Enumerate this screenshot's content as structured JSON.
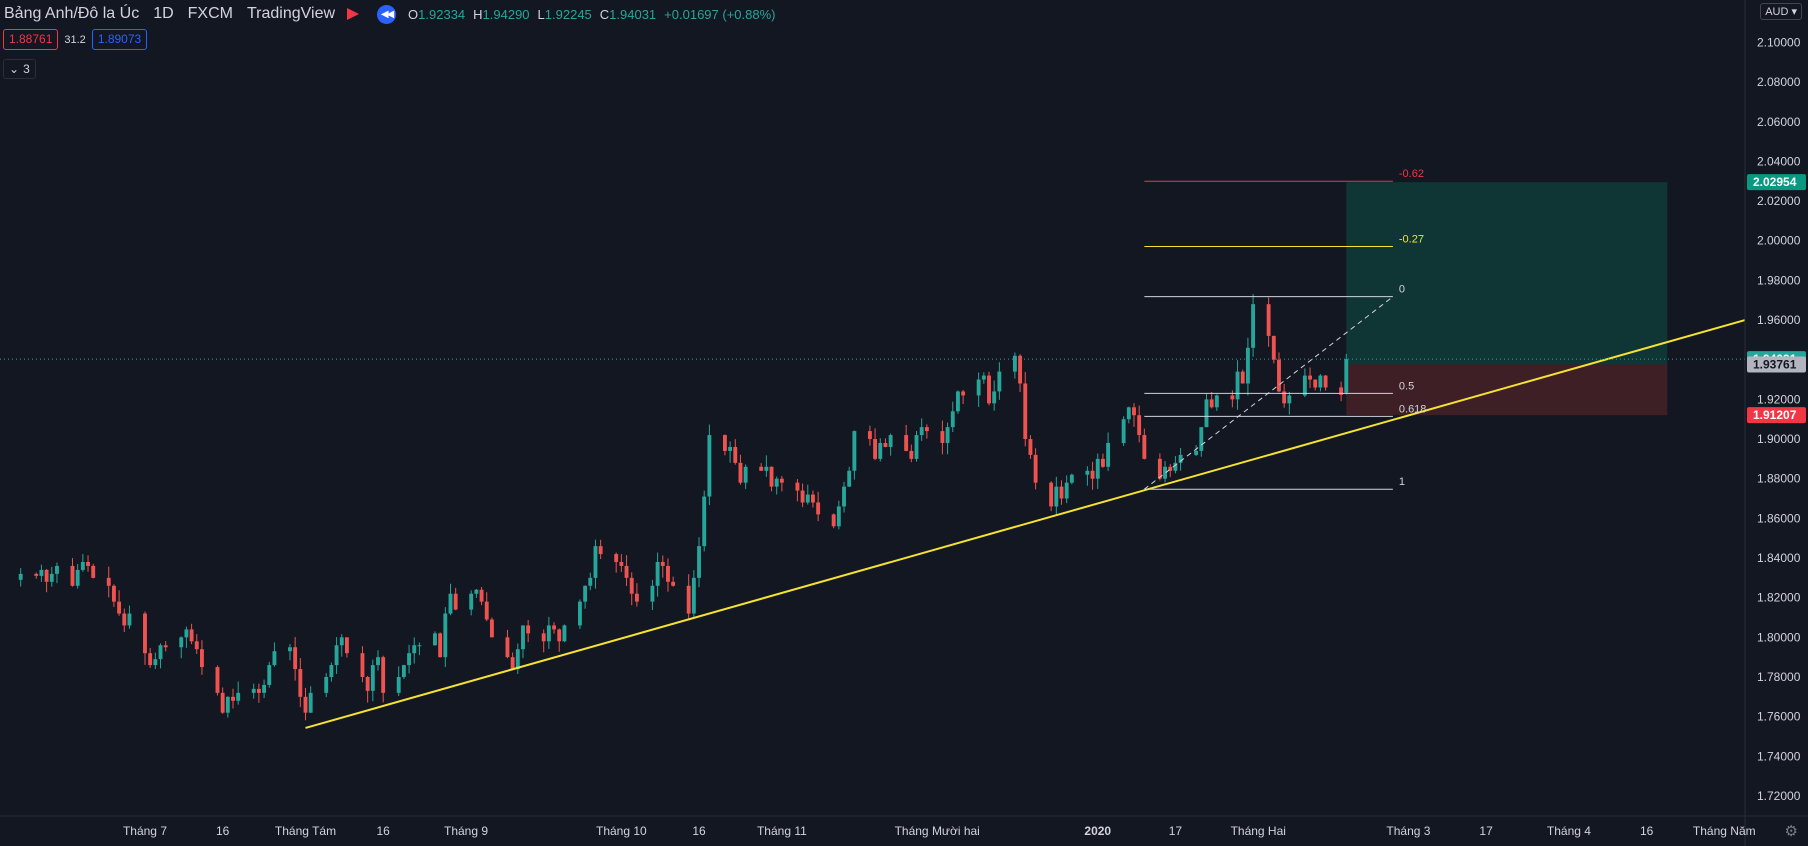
{
  "legend": {
    "symbol": "Bảng Anh/Đô la Úc",
    "interval": "1D",
    "source": "FXCM",
    "platform": "TradingView",
    "ohlc": [
      {
        "k": "O",
        "v": "1.92334"
      },
      {
        "k": "H",
        "v": "1.94290"
      },
      {
        "k": "L",
        "v": "1.92245"
      },
      {
        "k": "C",
        "v": "1.94031"
      },
      {
        "k": "",
        "v": "+0.01697 (+0.88%)"
      }
    ],
    "sell": "1.88761",
    "spread": "31.2",
    "buy": "1.89073",
    "indicator_count": "3",
    "currency": "AUD"
  },
  "colors": {
    "background": "#131722",
    "up": "#26a69a",
    "down": "#ef5350",
    "trendline": "#f5e232",
    "profit_zone": "#0f3534",
    "loss_zone": "#3e1f25"
  },
  "chart_data": {
    "type": "candlestick",
    "y_ticks": [
      1.72,
      1.74,
      1.76,
      1.78,
      1.8,
      1.82,
      1.84,
      1.86,
      1.88,
      1.9,
      1.92,
      1.94,
      1.96,
      1.98,
      2.0,
      2.02,
      2.04,
      2.06,
      2.08,
      2.1
    ],
    "y_tick_labels": [
      "1.72000",
      "1.74000",
      "1.76000",
      "1.78000",
      "1.80000",
      "1.82000",
      "1.84000",
      "1.86000",
      "1.88000",
      "1.90000",
      "1.92000",
      "1.94000",
      "1.96000",
      "1.98000",
      "2.00000",
      "2.02000",
      "2.04000",
      "2.06000",
      "2.08000",
      "2.10000"
    ],
    "ylim": [
      1.7099,
      2.1214
    ],
    "x_range": [
      "2019-06-03",
      "2020-05-05"
    ],
    "x_ticks": [
      {
        "date": "2019-07-01",
        "label": "Tháng 7",
        "bold": false
      },
      {
        "date": "2019-07-16",
        "label": "16",
        "bold": false
      },
      {
        "date": "2019-08-01",
        "label": "Tháng Tám",
        "bold": false
      },
      {
        "date": "2019-08-16",
        "label": "16",
        "bold": false
      },
      {
        "date": "2019-09-01",
        "label": "Tháng 9",
        "bold": false
      },
      {
        "date": "2019-10-01",
        "label": "Tháng 10",
        "bold": false
      },
      {
        "date": "2019-10-16",
        "label": "16",
        "bold": false
      },
      {
        "date": "2019-11-01",
        "label": "Tháng 11",
        "bold": false
      },
      {
        "date": "2019-12-01",
        "label": "Tháng Mười hai",
        "bold": false
      },
      {
        "date": "2020-01-01",
        "label": "2020",
        "bold": true
      },
      {
        "date": "2020-01-16",
        "label": "17",
        "bold": false
      },
      {
        "date": "2020-02-01",
        "label": "Tháng Hai",
        "bold": false
      },
      {
        "date": "2020-03-01",
        "label": "Tháng 3",
        "bold": false
      },
      {
        "date": "2020-03-16",
        "label": "17",
        "bold": false
      },
      {
        "date": "2020-04-01",
        "label": "Tháng 4",
        "bold": false
      },
      {
        "date": "2020-04-16",
        "label": "16",
        "bold": false
      },
      {
        "date": "2020-05-01",
        "label": "Tháng Năm",
        "bold": false
      }
    ],
    "candle_closes": [
      1.832,
      1.831,
      1.834,
      1.828,
      1.832,
      1.836,
      1.826,
      1.834,
      1.838,
      1.836,
      1.83,
      1.826,
      1.818,
      1.812,
      1.806,
      1.812,
      1.792,
      1.786,
      1.789,
      1.796,
      1.795,
      1.8,
      1.804,
      1.798,
      1.794,
      1.785,
      1.772,
      1.762,
      1.77,
      1.768,
      1.772,
      1.774,
      1.772,
      1.776,
      1.786,
      1.793,
      1.795,
      1.784,
      1.77,
      1.762,
      1.772,
      1.78,
      1.786,
      1.796,
      1.8,
      1.792,
      1.78,
      1.773,
      1.786,
      1.79,
      1.772,
      1.78,
      1.786,
      1.792,
      1.796,
      1.796,
      1.802,
      1.79,
      1.812,
      1.822,
      1.814,
      1.822,
      1.824,
      1.818,
      1.809,
      1.8,
      1.79,
      1.784,
      1.794,
      1.806,
      1.802,
      1.798,
      1.806,
      1.804,
      1.798,
      1.806,
      1.818,
      1.826,
      1.83,
      1.846,
      1.842,
      1.838,
      1.836,
      1.83,
      1.822,
      1.818,
      1.826,
      1.838,
      1.836,
      1.828,
      1.826,
      1.812,
      1.83,
      1.846,
      1.871,
      1.902,
      1.894,
      1.896,
      1.888,
      1.878,
      1.886,
      1.884,
      1.886,
      1.876,
      1.88,
      1.878,
      1.874,
      1.868,
      1.872,
      1.868,
      1.862,
      1.856,
      1.866,
      1.876,
      1.884,
      1.904,
      1.9,
      1.89,
      1.898,
      1.896,
      1.902,
      1.894,
      1.89,
      1.902,
      1.906,
      1.904,
      1.898,
      1.906,
      1.914,
      1.924,
      1.922,
      1.93,
      1.932,
      1.918,
      1.924,
      1.934,
      1.942,
      1.928,
      1.9,
      1.892,
      1.878,
      1.866,
      1.876,
      1.87,
      1.878,
      1.882,
      1.884,
      1.88,
      1.89,
      1.886,
      1.898,
      1.91,
      1.916,
      1.912,
      1.902,
      1.89,
      1.88,
      1.886,
      1.884,
      1.888,
      1.892,
      1.894,
      1.906,
      1.92,
      1.916,
      1.922,
      1.92,
      1.934,
      1.928,
      1.946,
      1.968,
      1.952,
      1.94,
      1.924,
      1.918,
      1.922,
      1.932,
      1.93,
      1.926,
      1.932,
      1.926,
      1.9223,
      1.9403
    ],
    "last_candle": {
      "date": "2020-02-18",
      "open": 1.92334,
      "high": 1.9429,
      "low": 1.92245,
      "close": 1.94031
    },
    "trendline": {
      "from": {
        "date": "2019-08-01",
        "price": 1.7543
      },
      "to": {
        "date": "2020-05-05",
        "price": 1.96
      }
    },
    "fib_retracement": {
      "start": "2020-01-10",
      "end": "2020-02-27",
      "levels": [
        {
          "label": "-0.62",
          "price": 2.03,
          "color": "#f23645"
        },
        {
          "label": "-0.27",
          "price": 1.9971,
          "color": "#f5e232"
        },
        {
          "label": "0",
          "price": 1.9718,
          "color": "#d1d4dc"
        },
        {
          "label": "0.5",
          "price": 1.923,
          "color": "#d1d4dc"
        },
        {
          "label": "0.618",
          "price": 1.9114,
          "color": "#d1d4dc"
        },
        {
          "label": "1",
          "price": 1.8747,
          "color": "#d1d4dc"
        }
      ],
      "diagonal": {
        "from": {
          "date": "2020-01-10",
          "price": 1.8747
        },
        "to": {
          "date": "2020-02-27",
          "price": 1.9718
        }
      }
    },
    "long_position": {
      "start": "2020-02-18",
      "end": "2020-04-20",
      "entry": 1.93761,
      "target": 2.02954,
      "stop": 1.91207
    },
    "price_labels": [
      {
        "label": "2.02954",
        "price": 2.02954,
        "bg": "#089981",
        "fg": "#ffffff"
      },
      {
        "label": "1.94031",
        "price": 1.94031,
        "bg": "#26a69a",
        "fg": "#ffffff"
      },
      {
        "label": "1.93761",
        "price": 1.93761,
        "bg": "#b2b5be",
        "fg": "#131722"
      },
      {
        "label": "1.91207",
        "price": 1.91207,
        "bg": "#f23645",
        "fg": "#ffffff"
      }
    ]
  }
}
